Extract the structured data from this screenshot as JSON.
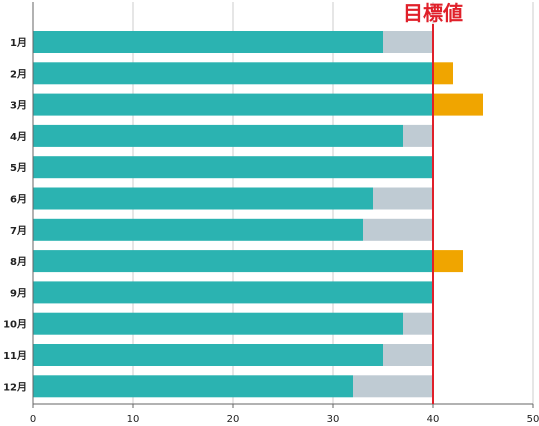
{
  "chart_data": {
    "type": "bar",
    "orientation": "horizontal",
    "stacked": true,
    "categories": [
      "1月",
      "2月",
      "3月",
      "4月",
      "5月",
      "6月",
      "7月",
      "8月",
      "9月",
      "10月",
      "11月",
      "12月"
    ],
    "values": [
      35,
      42,
      45,
      37,
      40,
      34,
      33,
      43,
      40,
      37,
      35,
      32
    ],
    "target": 40,
    "target_label": "目標値",
    "xlim": [
      0,
      50
    ],
    "xticks": [
      0,
      10,
      20,
      30,
      40,
      50
    ],
    "grid": true,
    "colors": {
      "achieved": "#2bb3b1",
      "remaining": "#bfcbd3",
      "excess": "#f0a500",
      "target_line": "#e0202a",
      "grid": "#cccccc",
      "axis": "#666666"
    }
  }
}
